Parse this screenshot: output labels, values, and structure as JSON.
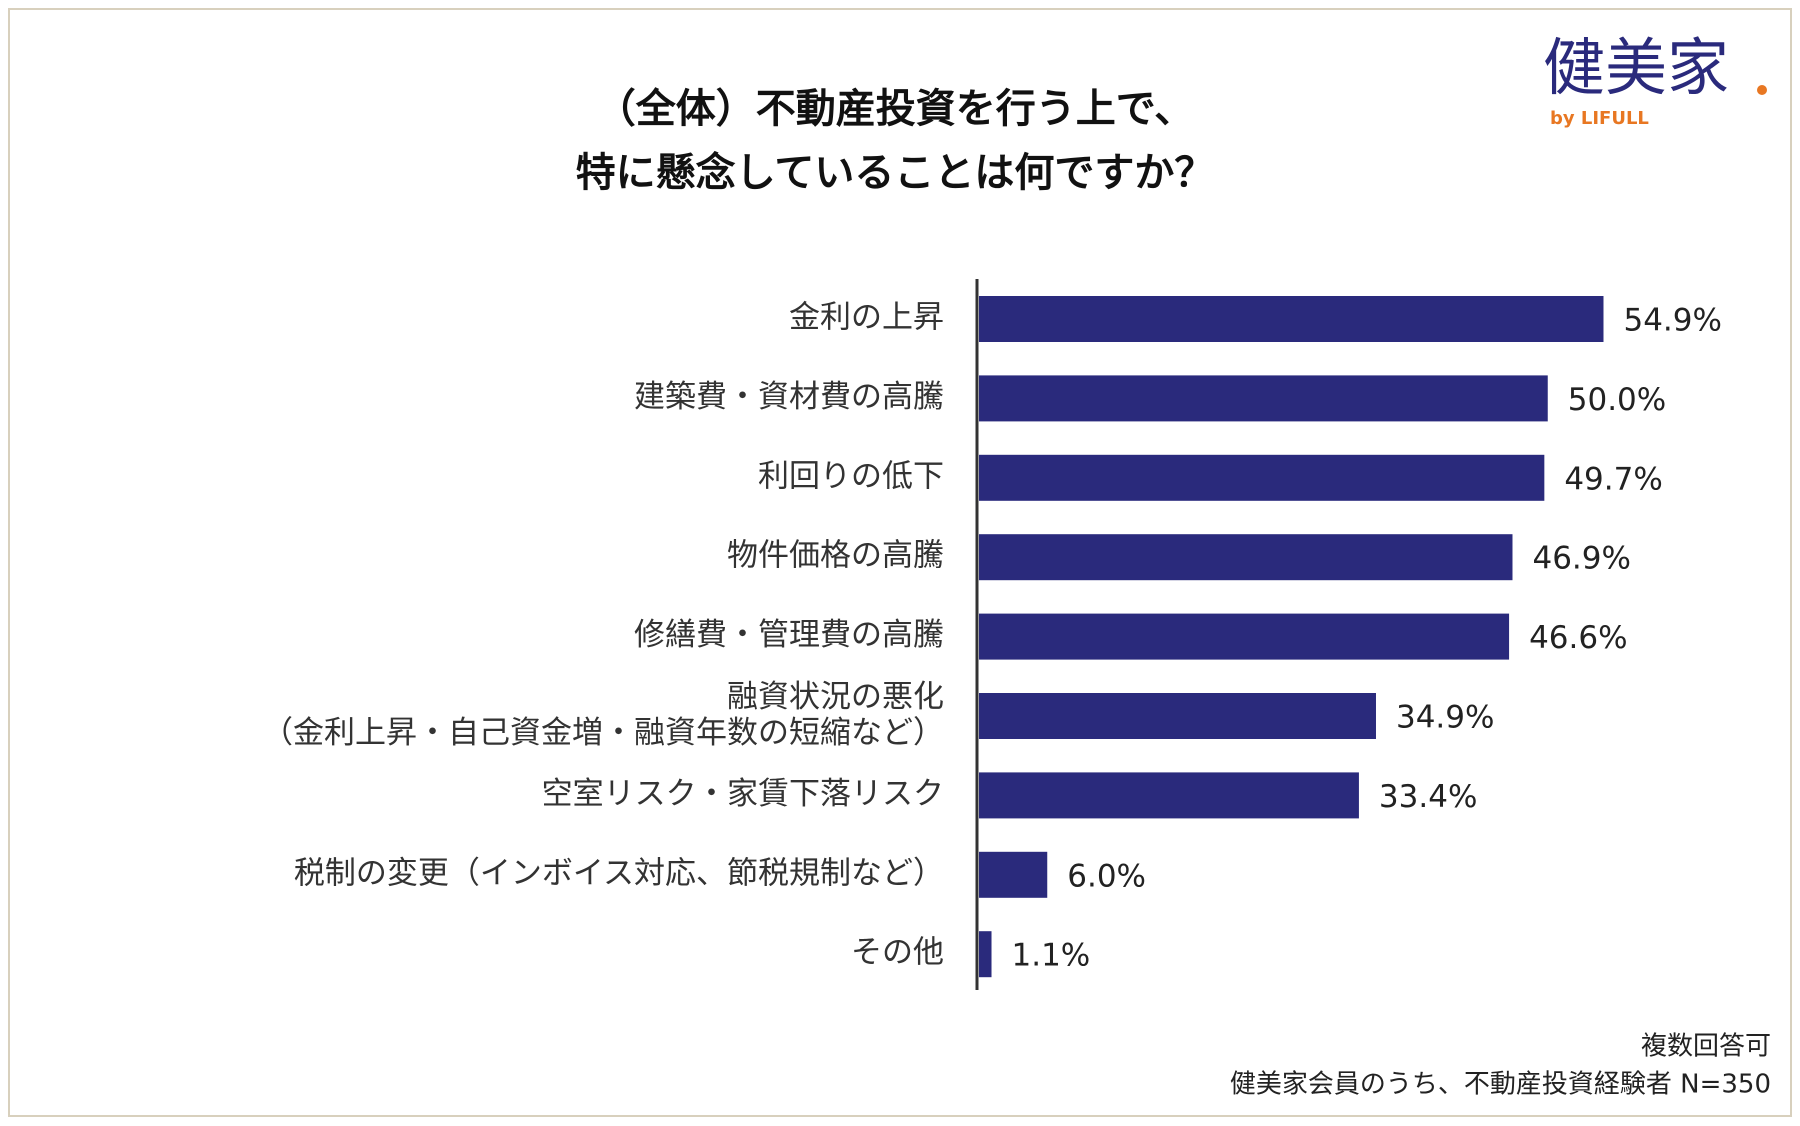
{
  "header": {
    "logo": "健美家",
    "logo_sub": "by LIFULL"
  },
  "chart_data": {
    "type": "bar",
    "orientation": "horizontal",
    "title": [
      "（全体）不動産投資を行う上で、",
      "特に懸念していることは何ですか？"
    ],
    "categories": [
      "金利の上昇",
      "建築費・資材費の高騰",
      "利回りの低下",
      "物件価格の高騰",
      "修繕費・管理費の高騰",
      "融資状況の悪化\n（金利上昇・自己資金増・融資年数の短縮など）",
      "空室リスク・家賃下落リスク",
      "税制の変更（インボイス対応、節税規制など）",
      "その他"
    ],
    "values": [
      54.9,
      50.0,
      49.7,
      46.9,
      46.6,
      34.9,
      33.4,
      6.0,
      1.1
    ],
    "value_labels": [
      "54.9%",
      "50.0%",
      "49.7%",
      "46.9%",
      "46.6%",
      "34.9%",
      "33.4%",
      "6.0%",
      "1.1%"
    ],
    "color": "#2a2a7c"
  },
  "notes": [
    "複数回答可",
    "健美家会員のうち、不動産投資経験者 N=350"
  ]
}
